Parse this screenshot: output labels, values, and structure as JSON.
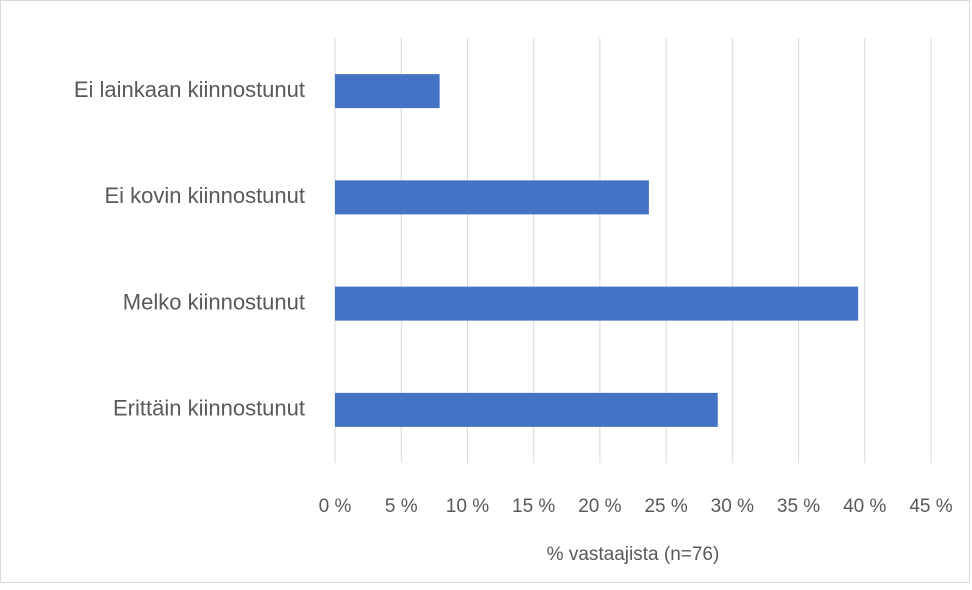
{
  "chart_data": {
    "type": "bar",
    "orientation": "horizontal",
    "categories": [
      "Ei lainkaan kiinnostunut",
      "Ei kovin kiinnostunut",
      "Melko kiinnostunut",
      "Erittäin kiinnostunut"
    ],
    "values": [
      7.9,
      23.7,
      39.5,
      28.9
    ],
    "color": "#4472c4",
    "xlabel": "% vastaajista (n=76)",
    "xlim": [
      0,
      45
    ],
    "xticks": [
      {
        "value": 0,
        "label": "0 %"
      },
      {
        "value": 5,
        "label": "5 %"
      },
      {
        "value": 10,
        "label": "10 %"
      },
      {
        "value": 15,
        "label": "15 %"
      },
      {
        "value": 20,
        "label": "20 %"
      },
      {
        "value": 25,
        "label": "25 %"
      },
      {
        "value": 30,
        "label": "30 %"
      },
      {
        "value": 35,
        "label": "35 %"
      },
      {
        "value": 40,
        "label": "40 %"
      },
      {
        "value": 45,
        "label": "45 %"
      }
    ],
    "grid": true
  }
}
